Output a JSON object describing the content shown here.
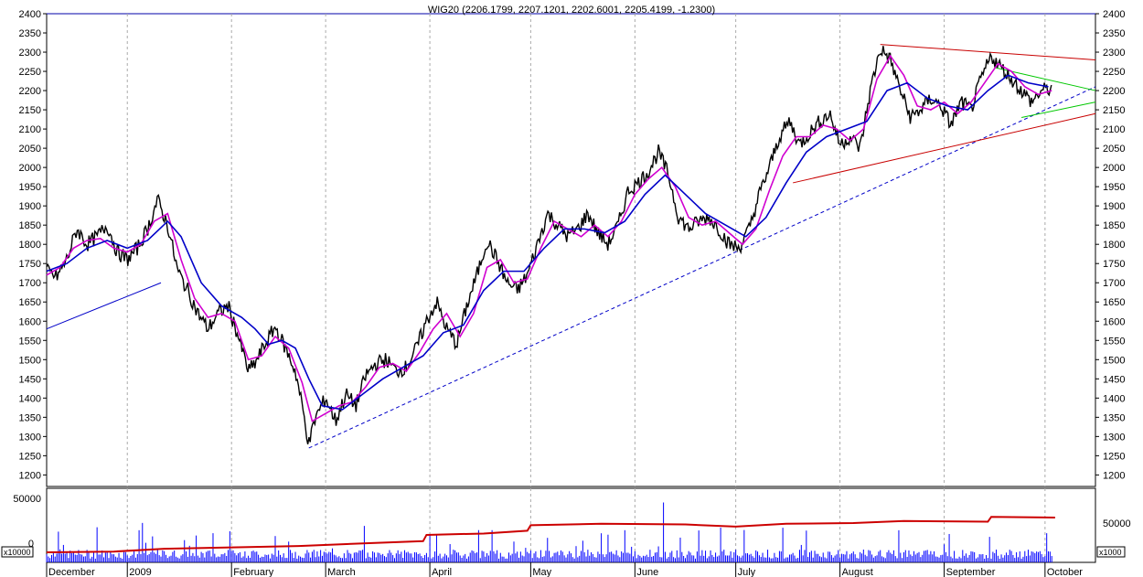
{
  "chart_data": {
    "type": "line",
    "title": "WIG20 (2206.1799, 2207.1201, 2202.6001, 2205.4199, -1.2300)",
    "price_axis": {
      "ylim": [
        1170,
        2400
      ],
      "ticks": [
        1200,
        1250,
        1300,
        1350,
        1400,
        1450,
        1500,
        1550,
        1600,
        1650,
        1700,
        1750,
        1800,
        1850,
        1900,
        1950,
        2000,
        2050,
        2100,
        2150,
        2200,
        2250,
        2300,
        2350,
        2400
      ]
    },
    "volume_axis": {
      "left_ticks": [
        "50000",
        "0"
      ],
      "right_ticks": [
        "50000"
      ],
      "left_unit": "x10000",
      "right_unit": "x1000"
    },
    "x_range_days": [
      0,
      312
    ],
    "months": [
      {
        "label": "December",
        "day": 0
      },
      {
        "label": "2009",
        "day": 24
      },
      {
        "label": "February",
        "day": 55
      },
      {
        "label": "March",
        "day": 83
      },
      {
        "label": "April",
        "day": 114
      },
      {
        "label": "May",
        "day": 144
      },
      {
        "label": "June",
        "day": 175
      },
      {
        "label": "July",
        "day": 205
      },
      {
        "label": "August",
        "day": 236
      },
      {
        "label": "September",
        "day": 267
      },
      {
        "label": "October",
        "day": 297
      }
    ],
    "series": [
      {
        "style": "price",
        "color": "#000000",
        "points": [
          [
            0,
            1730
          ],
          [
            3,
            1715
          ],
          [
            6,
            1760
          ],
          [
            9,
            1840
          ],
          [
            12,
            1800
          ],
          [
            15,
            1820
          ],
          [
            18,
            1850
          ],
          [
            21,
            1780
          ],
          [
            24,
            1760
          ],
          [
            27,
            1790
          ],
          [
            30,
            1840
          ],
          [
            33,
            1915
          ],
          [
            36,
            1850
          ],
          [
            39,
            1730
          ],
          [
            42,
            1680
          ],
          [
            45,
            1620
          ],
          [
            48,
            1580
          ],
          [
            51,
            1620
          ],
          [
            54,
            1640
          ],
          [
            57,
            1560
          ],
          [
            60,
            1470
          ],
          [
            62,
            1490
          ],
          [
            65,
            1540
          ],
          [
            68,
            1585
          ],
          [
            71,
            1530
          ],
          [
            74,
            1470
          ],
          [
            76,
            1380
          ],
          [
            78,
            1280
          ],
          [
            80,
            1350
          ],
          [
            83,
            1400
          ],
          [
            86,
            1340
          ],
          [
            89,
            1410
          ],
          [
            92,
            1380
          ],
          [
            95,
            1460
          ],
          [
            98,
            1490
          ],
          [
            101,
            1500
          ],
          [
            104,
            1470
          ],
          [
            107,
            1480
          ],
          [
            110,
            1530
          ],
          [
            113,
            1600
          ],
          [
            116,
            1650
          ],
          [
            119,
            1580
          ],
          [
            122,
            1540
          ],
          [
            125,
            1640
          ],
          [
            128,
            1720
          ],
          [
            131,
            1810
          ],
          [
            134,
            1760
          ],
          [
            137,
            1700
          ],
          [
            140,
            1680
          ],
          [
            143,
            1720
          ],
          [
            146,
            1800
          ],
          [
            149,
            1880
          ],
          [
            152,
            1850
          ],
          [
            155,
            1820
          ],
          [
            158,
            1840
          ],
          [
            161,
            1880
          ],
          [
            164,
            1830
          ],
          [
            167,
            1800
          ],
          [
            170,
            1850
          ],
          [
            173,
            1940
          ],
          [
            176,
            1960
          ],
          [
            179,
            1990
          ],
          [
            182,
            2040
          ],
          [
            185,
            1980
          ],
          [
            188,
            1870
          ],
          [
            191,
            1840
          ],
          [
            194,
            1860
          ],
          [
            197,
            1870
          ],
          [
            200,
            1840
          ],
          [
            203,
            1800
          ],
          [
            206,
            1790
          ],
          [
            209,
            1840
          ],
          [
            212,
            1930
          ],
          [
            215,
            2000
          ],
          [
            218,
            2080
          ],
          [
            221,
            2120
          ],
          [
            224,
            2060
          ],
          [
            227,
            2090
          ],
          [
            230,
            2120
          ],
          [
            233,
            2140
          ],
          [
            236,
            2060
          ],
          [
            239,
            2080
          ],
          [
            242,
            2050
          ],
          [
            245,
            2200
          ],
          [
            248,
            2310
          ],
          [
            251,
            2280
          ],
          [
            254,
            2200
          ],
          [
            257,
            2130
          ],
          [
            260,
            2150
          ],
          [
            263,
            2180
          ],
          [
            266,
            2160
          ],
          [
            269,
            2110
          ],
          [
            272,
            2170
          ],
          [
            275,
            2150
          ],
          [
            278,
            2230
          ],
          [
            281,
            2290
          ],
          [
            284,
            2260
          ],
          [
            287,
            2230
          ],
          [
            290,
            2200
          ],
          [
            293,
            2170
          ],
          [
            296,
            2200
          ],
          [
            299,
            2205
          ]
        ]
      },
      {
        "style": "ma_short",
        "color": "#d000d0",
        "points": [
          [
            0,
            1720
          ],
          [
            4,
            1740
          ],
          [
            8,
            1790
          ],
          [
            12,
            1810
          ],
          [
            16,
            1815
          ],
          [
            20,
            1790
          ],
          [
            24,
            1780
          ],
          [
            28,
            1800
          ],
          [
            32,
            1860
          ],
          [
            36,
            1880
          ],
          [
            40,
            1760
          ],
          [
            44,
            1660
          ],
          [
            48,
            1610
          ],
          [
            52,
            1620
          ],
          [
            56,
            1600
          ],
          [
            60,
            1500
          ],
          [
            64,
            1510
          ],
          [
            68,
            1560
          ],
          [
            72,
            1530
          ],
          [
            76,
            1440
          ],
          [
            79,
            1340
          ],
          [
            83,
            1360
          ],
          [
            87,
            1380
          ],
          [
            91,
            1390
          ],
          [
            95,
            1430
          ],
          [
            99,
            1480
          ],
          [
            103,
            1490
          ],
          [
            107,
            1470
          ],
          [
            111,
            1520
          ],
          [
            115,
            1580
          ],
          [
            119,
            1620
          ],
          [
            123,
            1560
          ],
          [
            127,
            1620
          ],
          [
            131,
            1740
          ],
          [
            135,
            1760
          ],
          [
            139,
            1700
          ],
          [
            143,
            1710
          ],
          [
            147,
            1790
          ],
          [
            151,
            1860
          ],
          [
            155,
            1840
          ],
          [
            159,
            1820
          ],
          [
            163,
            1850
          ],
          [
            167,
            1820
          ],
          [
            171,
            1860
          ],
          [
            175,
            1930
          ],
          [
            179,
            1970
          ],
          [
            183,
            2000
          ],
          [
            187,
            1950
          ],
          [
            191,
            1870
          ],
          [
            195,
            1850
          ],
          [
            199,
            1860
          ],
          [
            203,
            1830
          ],
          [
            207,
            1800
          ],
          [
            211,
            1840
          ],
          [
            215,
            1940
          ],
          [
            219,
            2030
          ],
          [
            223,
            2080
          ],
          [
            227,
            2080
          ],
          [
            231,
            2110
          ],
          [
            235,
            2100
          ],
          [
            239,
            2070
          ],
          [
            243,
            2100
          ],
          [
            247,
            2230
          ],
          [
            251,
            2290
          ],
          [
            255,
            2240
          ],
          [
            259,
            2160
          ],
          [
            263,
            2150
          ],
          [
            267,
            2170
          ],
          [
            271,
            2140
          ],
          [
            275,
            2170
          ],
          [
            279,
            2220
          ],
          [
            283,
            2270
          ],
          [
            287,
            2250
          ],
          [
            291,
            2210
          ],
          [
            295,
            2190
          ],
          [
            299,
            2200
          ]
        ]
      },
      {
        "style": "ma_long",
        "color": "#0000c8",
        "points": [
          [
            0,
            1730
          ],
          [
            6,
            1750
          ],
          [
            12,
            1790
          ],
          [
            18,
            1810
          ],
          [
            24,
            1790
          ],
          [
            30,
            1810
          ],
          [
            36,
            1860
          ],
          [
            40,
            1820
          ],
          [
            46,
            1700
          ],
          [
            52,
            1640
          ],
          [
            58,
            1610
          ],
          [
            62,
            1580
          ],
          [
            66,
            1540
          ],
          [
            70,
            1550
          ],
          [
            74,
            1530
          ],
          [
            78,
            1450
          ],
          [
            82,
            1380
          ],
          [
            88,
            1370
          ],
          [
            94,
            1410
          ],
          [
            100,
            1450
          ],
          [
            106,
            1480
          ],
          [
            112,
            1510
          ],
          [
            118,
            1570
          ],
          [
            124,
            1590
          ],
          [
            130,
            1680
          ],
          [
            136,
            1730
          ],
          [
            142,
            1730
          ],
          [
            148,
            1790
          ],
          [
            154,
            1840
          ],
          [
            160,
            1840
          ],
          [
            166,
            1830
          ],
          [
            172,
            1860
          ],
          [
            178,
            1930
          ],
          [
            184,
            1980
          ],
          [
            190,
            1930
          ],
          [
            196,
            1880
          ],
          [
            202,
            1850
          ],
          [
            208,
            1820
          ],
          [
            214,
            1870
          ],
          [
            220,
            1960
          ],
          [
            226,
            2040
          ],
          [
            232,
            2080
          ],
          [
            238,
            2100
          ],
          [
            244,
            2120
          ],
          [
            250,
            2200
          ],
          [
            256,
            2220
          ],
          [
            262,
            2180
          ],
          [
            268,
            2160
          ],
          [
            274,
            2150
          ],
          [
            280,
            2200
          ],
          [
            286,
            2240
          ],
          [
            292,
            2220
          ],
          [
            298,
            2210
          ]
        ]
      }
    ],
    "trendlines": [
      {
        "color": "#0000c8",
        "dashed": false,
        "from": [
          0,
          1580
        ],
        "to": [
          34,
          1700
        ]
      },
      {
        "color": "#0000c8",
        "dashed": true,
        "from": [
          78,
          1270
        ],
        "to": [
          312,
          2210
        ]
      },
      {
        "color": "#c80000",
        "dashed": false,
        "from": [
          222,
          1960
        ],
        "to": [
          312,
          2140
        ]
      },
      {
        "color": "#c80000",
        "dashed": false,
        "from": [
          248,
          2320
        ],
        "to": [
          312,
          2280
        ]
      },
      {
        "color": "#00c800",
        "dashed": false,
        "from": [
          282,
          2260
        ],
        "to": [
          312,
          2200
        ]
      },
      {
        "color": "#00c800",
        "dashed": false,
        "from": [
          290,
          2130
        ],
        "to": [
          312,
          2170
        ]
      }
    ],
    "obv_line": {
      "color": "#cc0000",
      "points": [
        [
          0,
          0.08
        ],
        [
          20,
          0.1
        ],
        [
          35,
          0.18
        ],
        [
          55,
          0.22
        ],
        [
          75,
          0.26
        ],
        [
          95,
          0.34
        ],
        [
          112,
          0.4
        ],
        [
          113,
          0.58
        ],
        [
          130,
          0.62
        ],
        [
          143,
          0.7
        ],
        [
          144,
          0.86
        ],
        [
          165,
          0.9
        ],
        [
          190,
          0.88
        ],
        [
          205,
          0.82
        ],
        [
          220,
          0.9
        ],
        [
          240,
          0.92
        ],
        [
          255,
          0.98
        ],
        [
          280,
          0.96
        ],
        [
          281,
          1.1
        ],
        [
          300,
          1.08
        ]
      ]
    },
    "volume_bar_color": "#0000ff"
  }
}
